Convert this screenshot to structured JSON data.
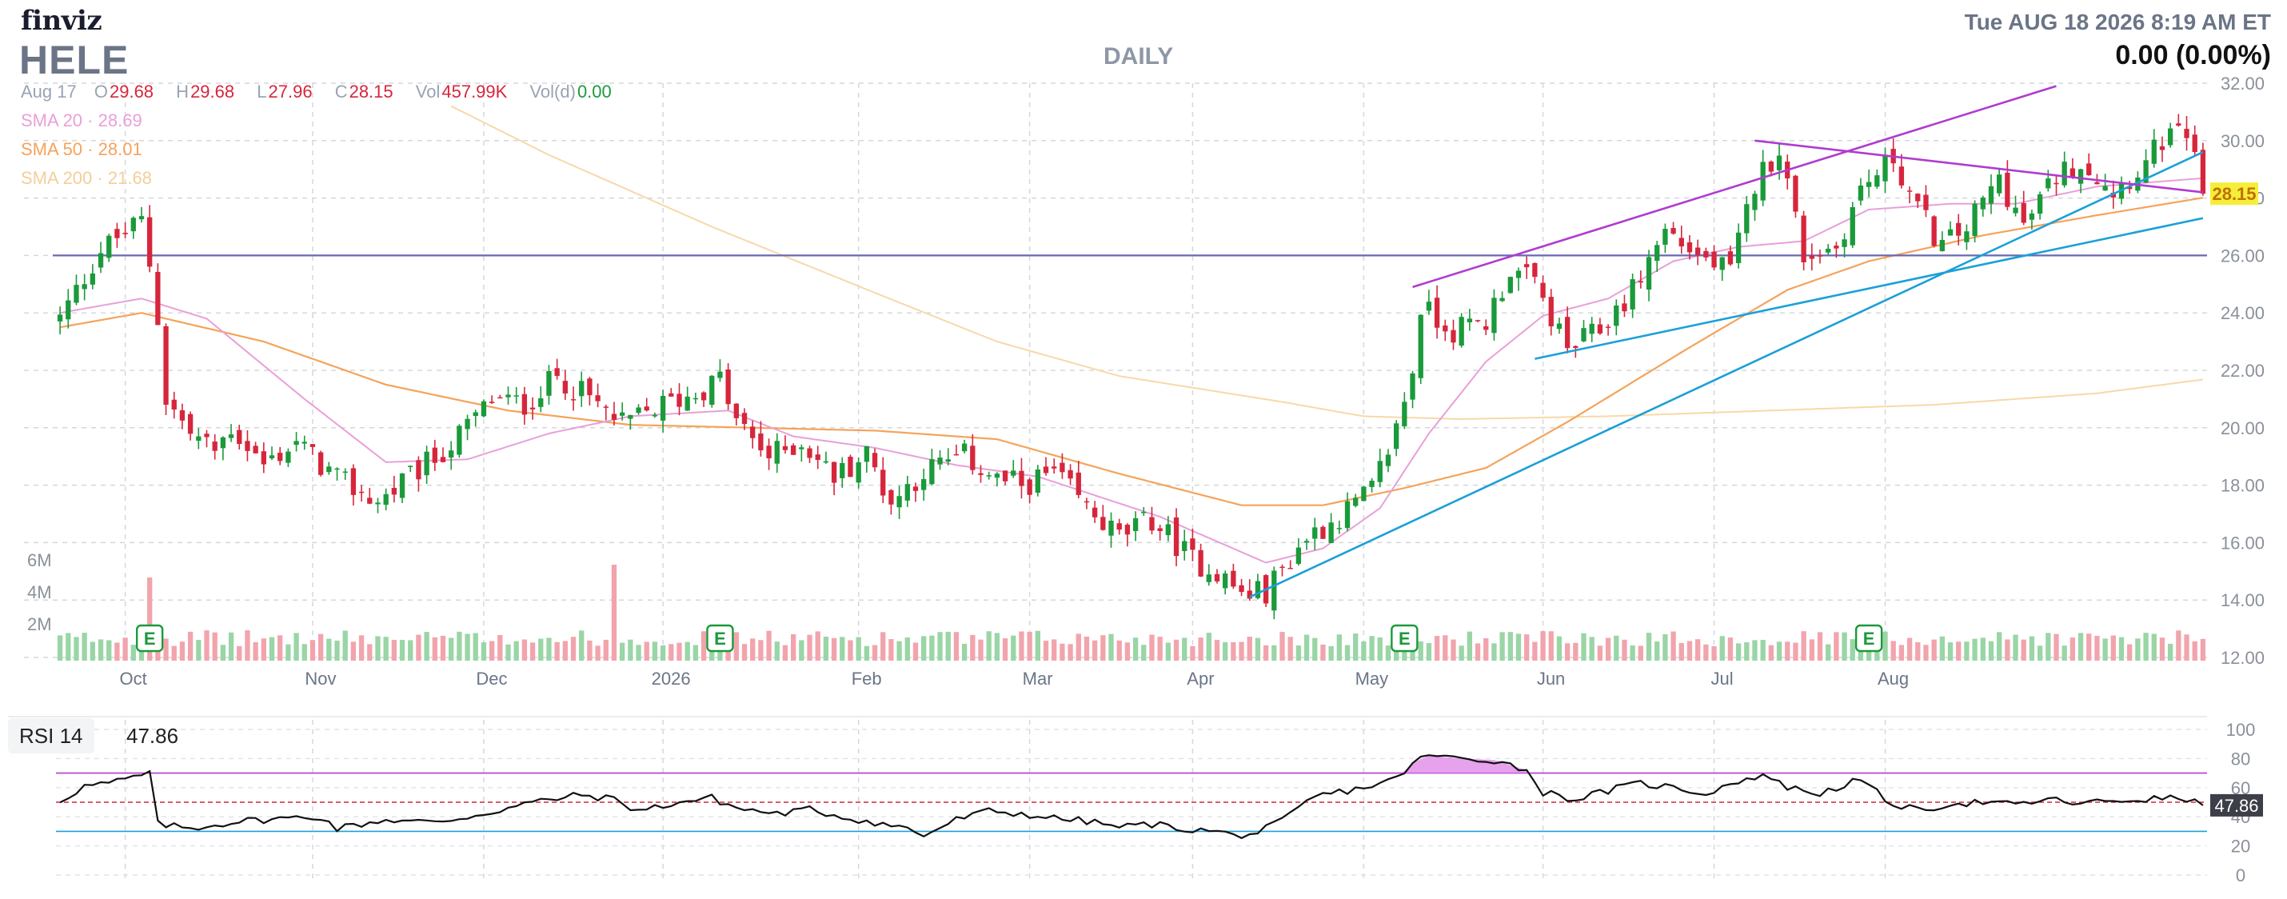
{
  "header": {
    "logo": "finviz",
    "ticker": "HELE",
    "timeframe": "DAILY",
    "datetime": "Tue AUG 18 2026 8:19 AM ET",
    "change": "0.00 (0.00%)"
  },
  "ohlc": {
    "date": "Aug 17",
    "open_label": "O",
    "open": "29.68",
    "high_label": "H",
    "high": "29.68",
    "low_label": "L",
    "low": "27.96",
    "close_label": "C",
    "close": "28.15",
    "vol_label": "Vol",
    "vol": "457.99K",
    "vold_label": "Vol(d)",
    "vold": "0.00"
  },
  "sma": [
    {
      "label": "SMA 20",
      "sep": "·",
      "value": "28.69",
      "color": "#e8a0d8"
    },
    {
      "label": "SMA 50",
      "sep": "·",
      "value": "28.01",
      "color": "#f5a35a"
    },
    {
      "label": "SMA 200",
      "sep": "·",
      "value": "21.68",
      "color": "#f7d9a8"
    }
  ],
  "colors": {
    "up": "#1a9a3a",
    "down": "#d6263c",
    "vol_up": "#9ad5a6",
    "vol_down": "#f2a4ad",
    "trend_blue": "#1ba0d8",
    "trend_purple": "#b03bd0",
    "hline": "#6a68b0"
  },
  "rsi": {
    "label": "RSI 14",
    "value": "47.86",
    "ticks": [
      "100",
      "80",
      "60",
      "40",
      "20",
      "0"
    ],
    "levels": {
      "overbought": 70,
      "mid": 50,
      "oversold": 30
    }
  },
  "chart_data": {
    "type": "candlestick",
    "title": "HELE",
    "ylim": [
      12,
      32
    ],
    "y_ticks": [
      "32.00",
      "30.00",
      "28.00",
      "26.00",
      "24.00",
      "22.00",
      "20.00",
      "18.00",
      "16.00",
      "14.00",
      "12.00"
    ],
    "x_ticks": [
      "Oct",
      "Nov",
      "Dec",
      "2026",
      "Feb",
      "Mar",
      "Apr",
      "May",
      "Jun",
      "Jul",
      "Aug"
    ],
    "volume_ticks": [
      "6M",
      "4M",
      "2M"
    ],
    "last_price_label": "28.15",
    "earnings_marker": "E",
    "horizontal_line": 26.0,
    "price_path": [
      [
        0,
        23.8
      ],
      [
        5,
        26.2
      ],
      [
        10,
        27.2
      ],
      [
        11,
        25.7
      ],
      [
        12,
        23.8
      ],
      [
        13,
        21.0
      ],
      [
        16,
        19.8
      ],
      [
        19,
        19.2
      ],
      [
        21,
        20.0
      ],
      [
        25,
        18.7
      ],
      [
        29,
        19.5
      ],
      [
        34,
        18.2
      ],
      [
        39,
        17.4
      ],
      [
        44,
        18.5
      ],
      [
        48,
        19.4
      ],
      [
        53,
        21.0
      ],
      [
        57,
        20.8
      ],
      [
        61,
        21.8
      ],
      [
        65,
        21.0
      ],
      [
        69,
        20.1
      ],
      [
        74,
        20.8
      ],
      [
        78,
        21.2
      ],
      [
        81,
        21.7
      ],
      [
        83,
        20.2
      ],
      [
        87,
        19.0
      ],
      [
        91,
        19.5
      ],
      [
        95,
        18.3
      ],
      [
        99,
        19.1
      ],
      [
        102,
        17.4
      ],
      [
        106,
        18.5
      ],
      [
        111,
        19.0
      ],
      [
        115,
        18.2
      ],
      [
        118,
        18.0
      ],
      [
        122,
        18.4
      ],
      [
        126,
        17.2
      ],
      [
        130,
        16.2
      ],
      [
        134,
        16.8
      ],
      [
        139,
        15.4
      ],
      [
        142,
        15.0
      ],
      [
        145,
        14.2
      ],
      [
        148,
        14.3
      ],
      [
        153,
        16.2
      ],
      [
        157,
        16.9
      ],
      [
        161,
        17.8
      ],
      [
        164,
        20.0
      ],
      [
        166,
        22.0
      ],
      [
        167,
        24.2
      ],
      [
        171,
        23.4
      ],
      [
        175,
        23.7
      ],
      [
        178,
        25.5
      ],
      [
        181,
        25.0
      ],
      [
        185,
        22.7
      ],
      [
        189,
        23.4
      ],
      [
        193,
        24.8
      ],
      [
        197,
        26.9
      ],
      [
        201,
        26.0
      ],
      [
        205,
        25.4
      ],
      [
        208,
        28.5
      ],
      [
        211,
        29.8
      ],
      [
        214,
        26.0
      ],
      [
        218,
        26.3
      ],
      [
        221,
        28.3
      ],
      [
        225,
        29.4
      ],
      [
        228,
        27.6
      ],
      [
        231,
        26.3
      ],
      [
        234,
        27.0
      ],
      [
        238,
        28.7
      ],
      [
        241,
        27.0
      ],
      [
        245,
        28.8
      ],
      [
        248,
        29.3
      ],
      [
        252,
        28.3
      ],
      [
        256,
        29.2
      ],
      [
        258,
        30.0
      ],
      [
        261,
        30.2
      ],
      [
        263,
        28.15
      ]
    ],
    "candle_count": 264,
    "sma20_path": [
      [
        0,
        24.0
      ],
      [
        10,
        24.5
      ],
      [
        18,
        23.8
      ],
      [
        30,
        21.0
      ],
      [
        40,
        18.8
      ],
      [
        50,
        18.9
      ],
      [
        60,
        19.8
      ],
      [
        70,
        20.4
      ],
      [
        82,
        20.6
      ],
      [
        90,
        19.7
      ],
      [
        100,
        19.3
      ],
      [
        110,
        18.7
      ],
      [
        120,
        18.3
      ],
      [
        135,
        16.9
      ],
      [
        148,
        15.3
      ],
      [
        155,
        15.8
      ],
      [
        162,
        17.2
      ],
      [
        168,
        19.8
      ],
      [
        175,
        22.3
      ],
      [
        182,
        23.9
      ],
      [
        190,
        24.5
      ],
      [
        198,
        25.8
      ],
      [
        206,
        26.3
      ],
      [
        214,
        26.5
      ],
      [
        222,
        27.6
      ],
      [
        232,
        27.8
      ],
      [
        240,
        27.8
      ],
      [
        250,
        28.4
      ],
      [
        263,
        28.69
      ]
    ],
    "sma50_path": [
      [
        0,
        23.5
      ],
      [
        10,
        24.0
      ],
      [
        25,
        23.0
      ],
      [
        40,
        21.5
      ],
      [
        55,
        20.6
      ],
      [
        70,
        20.1
      ],
      [
        85,
        20.0
      ],
      [
        100,
        19.9
      ],
      [
        115,
        19.6
      ],
      [
        130,
        18.4
      ],
      [
        145,
        17.3
      ],
      [
        155,
        17.3
      ],
      [
        165,
        17.9
      ],
      [
        175,
        18.6
      ],
      [
        185,
        20.2
      ],
      [
        200,
        22.8
      ],
      [
        212,
        24.8
      ],
      [
        222,
        25.8
      ],
      [
        236,
        26.7
      ],
      [
        250,
        27.4
      ],
      [
        263,
        28.01
      ]
    ],
    "sma200_path": [
      [
        48,
        31.2
      ],
      [
        60,
        29.5
      ],
      [
        80,
        27.0
      ],
      [
        100,
        24.7
      ],
      [
        115,
        23.0
      ],
      [
        130,
        21.8
      ],
      [
        150,
        20.9
      ],
      [
        160,
        20.4
      ],
      [
        172,
        20.3
      ],
      [
        190,
        20.4
      ],
      [
        210,
        20.6
      ],
      [
        230,
        20.8
      ],
      [
        250,
        21.2
      ],
      [
        263,
        21.68
      ]
    ],
    "trendlines": [
      {
        "color": "#1ba0d8",
        "from": [
          146,
          14.1
        ],
        "to": [
          263,
          29.6
        ]
      },
      {
        "color": "#1ba0d8",
        "from": [
          181,
          22.4
        ],
        "to": [
          263,
          27.3
        ]
      },
      {
        "color": "#b03bd0",
        "from": [
          166,
          24.9
        ],
        "to": [
          245,
          31.9
        ]
      },
      {
        "color": "#b03bd0",
        "from": [
          208,
          30.0
        ],
        "to": [
          263,
          28.2
        ]
      }
    ],
    "volume_spikes": [
      [
        11,
        2.6
      ],
      [
        68,
        3.0
      ],
      [
        119,
        0.9
      ],
      [
        54,
        0.8
      ],
      [
        175,
        0.7
      ],
      [
        196,
        0.6
      ]
    ],
    "earnings_at": [
      11,
      81,
      165,
      222
    ],
    "rsi_path": [
      [
        0,
        51
      ],
      [
        3,
        61
      ],
      [
        6,
        63
      ],
      [
        9,
        67
      ],
      [
        11,
        70
      ],
      [
        12,
        35
      ],
      [
        16,
        32
      ],
      [
        22,
        37
      ],
      [
        28,
        39
      ],
      [
        32,
        40
      ],
      [
        34,
        32
      ],
      [
        40,
        38
      ],
      [
        46,
        36
      ],
      [
        52,
        42
      ],
      [
        58,
        50
      ],
      [
        64,
        55
      ],
      [
        68,
        52
      ],
      [
        71,
        44
      ],
      [
        76,
        50
      ],
      [
        80,
        53
      ],
      [
        83,
        46
      ],
      [
        88,
        42
      ],
      [
        92,
        45
      ],
      [
        96,
        40
      ],
      [
        100,
        36
      ],
      [
        104,
        32
      ],
      [
        106,
        27
      ],
      [
        110,
        38
      ],
      [
        114,
        44
      ],
      [
        118,
        42
      ],
      [
        122,
        39
      ],
      [
        126,
        37
      ],
      [
        130,
        33
      ],
      [
        134,
        35
      ],
      [
        139,
        31
      ],
      [
        142,
        30
      ],
      [
        144,
        27
      ],
      [
        147,
        29
      ],
      [
        150,
        37
      ],
      [
        154,
        54
      ],
      [
        160,
        60
      ],
      [
        164,
        66
      ],
      [
        166,
        77
      ],
      [
        168,
        82
      ],
      [
        172,
        80
      ],
      [
        176,
        79
      ],
      [
        180,
        72
      ],
      [
        182,
        57
      ],
      [
        186,
        52
      ],
      [
        190,
        58
      ],
      [
        194,
        63
      ],
      [
        198,
        60
      ],
      [
        202,
        56
      ],
      [
        206,
        65
      ],
      [
        210,
        68
      ],
      [
        212,
        60
      ],
      [
        216,
        56
      ],
      [
        220,
        64
      ],
      [
        222,
        62
      ],
      [
        224,
        51
      ],
      [
        228,
        44
      ],
      [
        232,
        49
      ],
      [
        236,
        50
      ],
      [
        240,
        48
      ],
      [
        244,
        52
      ],
      [
        248,
        49
      ],
      [
        252,
        51
      ],
      [
        256,
        52
      ],
      [
        260,
        53
      ],
      [
        263,
        47.86
      ]
    ]
  }
}
